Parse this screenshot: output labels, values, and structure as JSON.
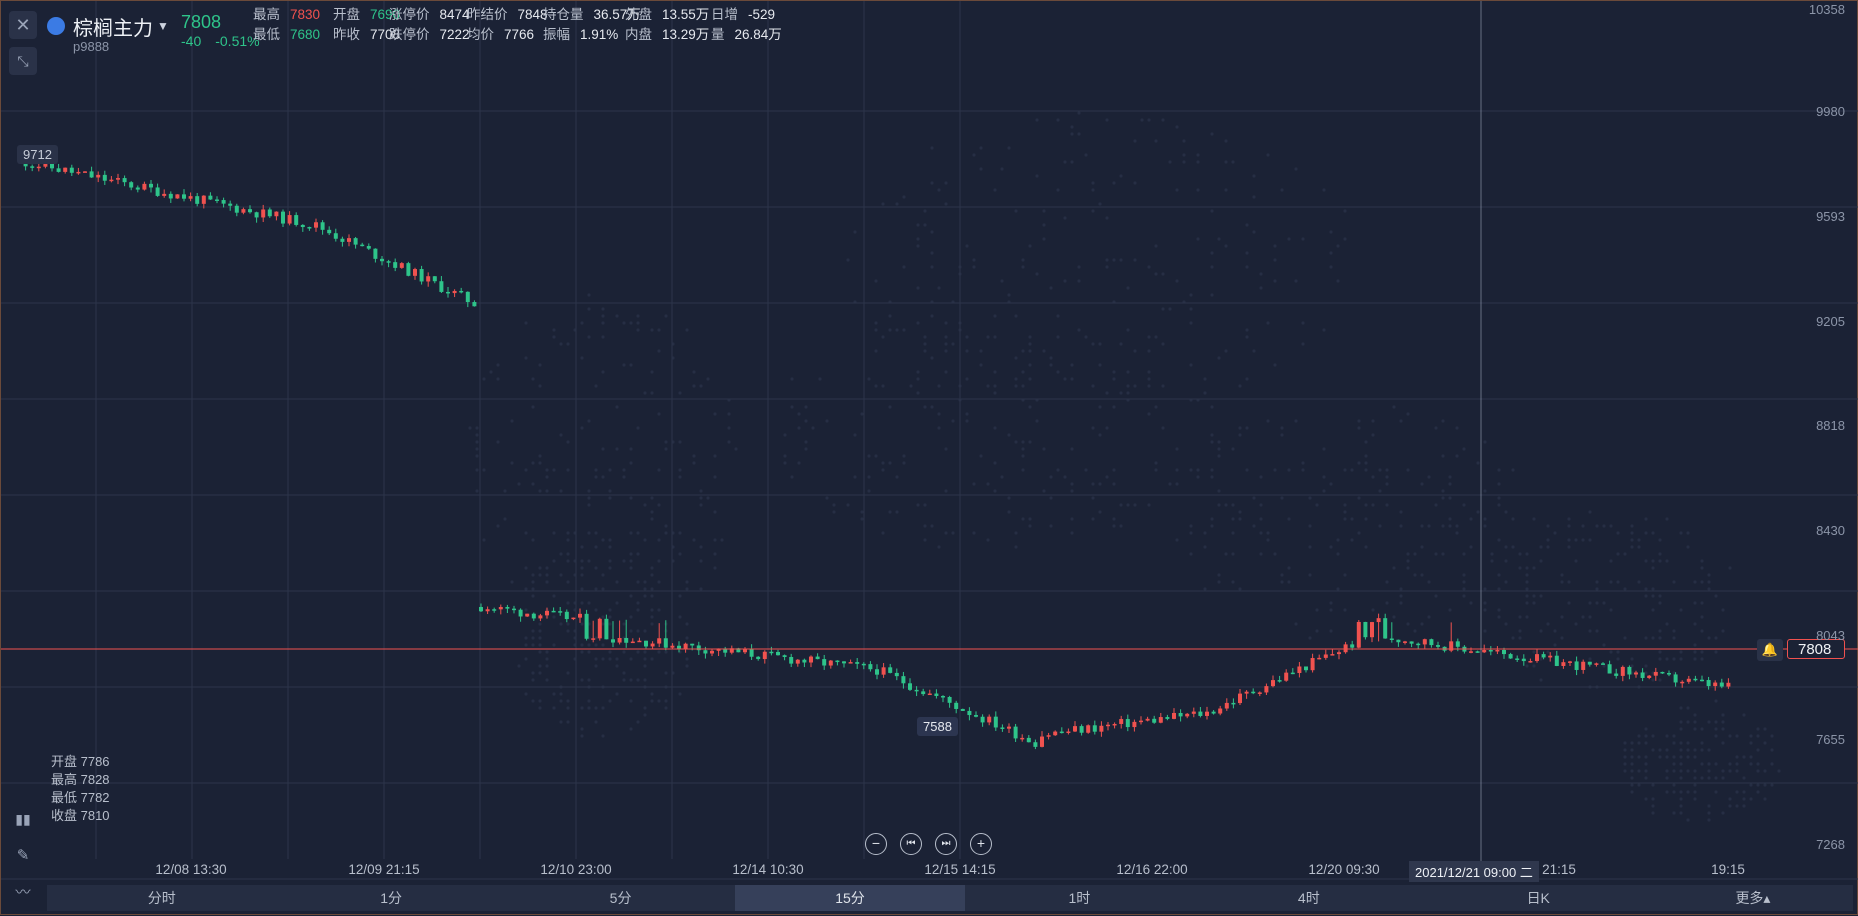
{
  "header": {
    "symbol_name": "棕榈主力",
    "symbol_code": "p9888",
    "last_price": "7808",
    "change": "-40",
    "change_pct": "-0.51%",
    "stats": [
      {
        "label": "最高",
        "value": "7830",
        "color": "red"
      },
      {
        "label": "开盘",
        "value": "7690",
        "color": "green"
      },
      {
        "label": "涨停价",
        "value": "8474",
        "color": "white"
      },
      {
        "label": "昨结价",
        "value": "7848",
        "color": "white"
      },
      {
        "label": "持仓量",
        "value": "36.57万",
        "color": "white"
      },
      {
        "label": "外盘",
        "value": "13.55万",
        "color": "white"
      },
      {
        "label": "日增",
        "value": "-529",
        "color": "white"
      },
      {
        "label": "最低",
        "value": "7680",
        "color": "green"
      },
      {
        "label": "昨收",
        "value": "7708",
        "color": "white"
      },
      {
        "label": "跌停价",
        "value": "7222",
        "color": "white"
      },
      {
        "label": "均价",
        "value": "7766",
        "color": "white"
      },
      {
        "label": "振幅",
        "value": "1.91%",
        "color": "white"
      },
      {
        "label": "内盘",
        "value": "13.29万",
        "color": "white"
      },
      {
        "label": "量",
        "value": "26.84万",
        "color": "white"
      }
    ]
  },
  "ohlc_box": {
    "open": "开盘 7786",
    "high": "最高 7828",
    "low": "最低 7782",
    "close": "收盘 7810"
  },
  "tags": {
    "left_high": "9712",
    "low_marker": "7588",
    "last": "7808",
    "crosshair_date": "2021/12/21 09:00 二"
  },
  "yaxis": [
    "10358",
    "9980",
    "9593",
    "9205",
    "8818",
    "8430",
    "8043",
    "7655",
    "7268"
  ],
  "xaxis": [
    "12/08 13:30",
    "12/09 21:15",
    "12/10 23:00",
    "12/14 10:30",
    "12/15 14:15",
    "12/16 22:00",
    "12/20 09:30",
    "21:15",
    "19:15"
  ],
  "periods": [
    "分时",
    "1分",
    "5分",
    "15分",
    "1时",
    "4时",
    "日K",
    "更多▴"
  ],
  "active_period": "15分",
  "colors": {
    "up": "#f0524f",
    "down": "#2ec48a",
    "bg": "#1b2235",
    "grid": "#2c344a"
  },
  "chart_data": {
    "type": "candlestick",
    "ylim": [
      7268,
      10358
    ],
    "last": 7808,
    "segments": [
      {
        "from": 9660,
        "to": 9420,
        "count": 45
      },
      {
        "from": 9420,
        "to": 9120,
        "count": 25
      },
      {
        "from": 8060,
        "to": 7880,
        "count": 60
      },
      {
        "from": 7880,
        "to": 7600,
        "count": 25
      },
      {
        "from": 7640,
        "to": 7720,
        "count": 25
      },
      {
        "from": 7720,
        "to": 8010,
        "count": 25
      },
      {
        "from": 8010,
        "to": 7810,
        "count": 55
      }
    ]
  }
}
